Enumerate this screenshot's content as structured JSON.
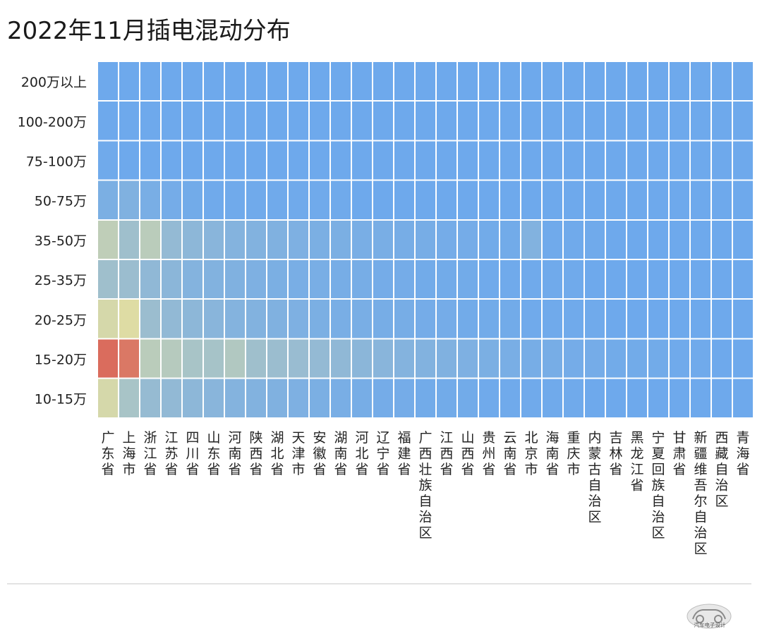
{
  "title": "2022年11月插电混动分布",
  "chart_data": {
    "type": "heatmap",
    "title": "2022年11月插电混动分布",
    "y_categories": [
      "200万以上",
      "100-200万",
      "75-100万",
      "50-75万",
      "35-50万",
      "25-35万",
      "20-25万",
      "15-20万",
      "10-15万"
    ],
    "x_categories": [
      "广东省",
      "上海市",
      "浙江省",
      "江苏省",
      "四川省",
      "山东省",
      "河南省",
      "陕西省",
      "湖北省",
      "天津市",
      "安徽省",
      "湖南省",
      "河北省",
      "辽宁省",
      "福建省",
      "广西壮族自治区",
      "江西省",
      "山西省",
      "贵州省",
      "云南省",
      "北京市",
      "海南省",
      "重庆市",
      "内蒙古自治区",
      "吉林省",
      "黑龙江省",
      "宁夏回族自治区",
      "甘肃省",
      "新疆维吾尔自治区",
      "西藏自治区",
      "青海省"
    ],
    "value_range": [
      0,
      1
    ],
    "color_low": "#6EA9EC",
    "color_mid": "#DEDCA4",
    "color_high": "#D95F55",
    "values": [
      [
        0,
        0,
        0,
        0,
        0,
        0,
        0,
        0,
        0,
        0,
        0,
        0,
        0,
        0,
        0,
        0,
        0,
        0,
        0,
        0,
        0,
        0,
        0,
        0,
        0,
        0,
        0,
        0,
        0,
        0,
        0
      ],
      [
        0,
        0,
        0,
        0,
        0,
        0,
        0,
        0,
        0,
        0,
        0,
        0,
        0,
        0,
        0,
        0,
        0,
        0,
        0,
        0,
        0,
        0,
        0,
        0,
        0,
        0,
        0,
        0,
        0,
        0,
        0
      ],
      [
        0.01,
        0,
        0,
        0,
        0,
        0,
        0,
        0,
        0,
        0,
        0,
        0,
        0,
        0,
        0,
        0,
        0,
        0,
        0,
        0,
        0,
        0,
        0,
        0,
        0,
        0,
        0,
        0,
        0,
        0,
        0
      ],
      [
        0.06,
        0.08,
        0.05,
        0.03,
        0.02,
        0.01,
        0.01,
        0.01,
        0.01,
        0.01,
        0.01,
        0.01,
        0,
        0,
        0,
        0,
        0,
        0,
        0,
        0,
        0,
        0,
        0,
        0,
        0,
        0,
        0,
        0,
        0,
        0,
        0
      ],
      [
        0.36,
        0.22,
        0.34,
        0.17,
        0.14,
        0.12,
        0.1,
        0.09,
        0.08,
        0.07,
        0.06,
        0.06,
        0.05,
        0.05,
        0.04,
        0.04,
        0.03,
        0.03,
        0.02,
        0.02,
        0.09,
        0.01,
        0.01,
        0.01,
        0,
        0,
        0,
        0,
        0,
        0,
        0
      ],
      [
        0.22,
        0.2,
        0.15,
        0.13,
        0.1,
        0.09,
        0.08,
        0.07,
        0.06,
        0.05,
        0.05,
        0.04,
        0.04,
        0.03,
        0.03,
        0.02,
        0.02,
        0.02,
        0.01,
        0.01,
        0.01,
        0.01,
        0.01,
        0,
        0,
        0,
        0,
        0,
        0,
        0,
        0
      ],
      [
        0.46,
        0.5,
        0.2,
        0.16,
        0.14,
        0.12,
        0.1,
        0.09,
        0.08,
        0.07,
        0.06,
        0.05,
        0.05,
        0.04,
        0.04,
        0.03,
        0.03,
        0.02,
        0.02,
        0.02,
        0.01,
        0.01,
        0.01,
        0.01,
        0,
        0,
        0,
        0,
        0,
        0,
        0
      ],
      [
        0.95,
        0.9,
        0.34,
        0.32,
        0.26,
        0.25,
        0.3,
        0.22,
        0.2,
        0.19,
        0.17,
        0.15,
        0.13,
        0.12,
        0.1,
        0.09,
        0.08,
        0.07,
        0.06,
        0.05,
        0.04,
        0.04,
        0.03,
        0.03,
        0.02,
        0.02,
        0.02,
        0.01,
        0.01,
        0,
        0
      ],
      [
        0.46,
        0.26,
        0.18,
        0.16,
        0.14,
        0.12,
        0.1,
        0.09,
        0.08,
        0.07,
        0.06,
        0.05,
        0.04,
        0.03,
        0.03,
        0.02,
        0.02,
        0.02,
        0.01,
        0.01,
        0.01,
        0.01,
        0.01,
        0,
        0,
        0,
        0,
        0,
        0,
        0,
        0
      ]
    ]
  },
  "watermark": {
    "text": "汽车电子设计",
    "icon": "car-logo-icon"
  }
}
